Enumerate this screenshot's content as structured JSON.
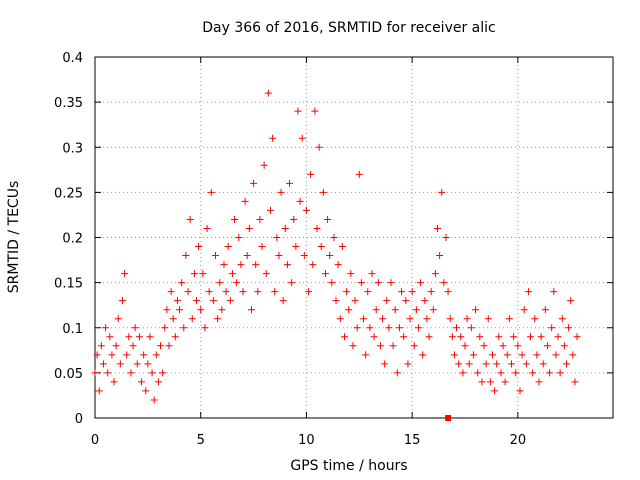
{
  "chart_data": {
    "type": "scatter",
    "title": "Day 366 of 2016, SRMTID for receiver alic",
    "xlabel": "GPS time / hours",
    "ylabel": "SRMTID / TECUs",
    "xlim": [
      0,
      24.5
    ],
    "ylim": [
      0,
      0.4
    ],
    "xticks": [
      0,
      5,
      10,
      15,
      20
    ],
    "xtick_labels": [
      "0",
      "5",
      "10",
      "15",
      "20"
    ],
    "yticks": [
      0,
      0.05,
      0.1,
      0.15,
      0.2,
      0.25,
      0.3,
      0.35,
      0.4
    ],
    "ytick_labels": [
      "0",
      "0.05",
      "0.1",
      "0.15",
      "0.2",
      "0.25",
      "0.3",
      "0.35",
      "0.4"
    ],
    "grid": true,
    "marker": "+",
    "color": "#ff0000",
    "series": [
      {
        "name": "SRMTID",
        "points": [
          [
            0.0,
            0.05
          ],
          [
            0.1,
            0.07
          ],
          [
            0.2,
            0.03
          ],
          [
            0.3,
            0.08
          ],
          [
            0.4,
            0.06
          ],
          [
            0.5,
            0.1
          ],
          [
            0.6,
            0.05
          ],
          [
            0.7,
            0.09
          ],
          [
            0.8,
            0.07
          ],
          [
            0.9,
            0.04
          ],
          [
            1.0,
            0.08
          ],
          [
            1.1,
            0.11
          ],
          [
            1.2,
            0.06
          ],
          [
            1.3,
            0.13
          ],
          [
            1.4,
            0.16
          ],
          [
            1.5,
            0.07
          ],
          [
            1.6,
            0.09
          ],
          [
            1.7,
            0.05
          ],
          [
            1.8,
            0.08
          ],
          [
            1.9,
            0.1
          ],
          [
            2.0,
            0.06
          ],
          [
            2.1,
            0.09
          ],
          [
            2.2,
            0.04
          ],
          [
            2.3,
            0.07
          ],
          [
            2.4,
            0.03
          ],
          [
            2.5,
            0.06
          ],
          [
            2.6,
            0.09
          ],
          [
            2.7,
            0.05
          ],
          [
            2.8,
            0.02
          ],
          [
            2.9,
            0.07
          ],
          [
            3.0,
            0.04
          ],
          [
            3.1,
            0.08
          ],
          [
            3.2,
            0.05
          ],
          [
            3.3,
            0.1
          ],
          [
            3.4,
            0.12
          ],
          [
            3.5,
            0.08
          ],
          [
            3.6,
            0.14
          ],
          [
            3.7,
            0.11
          ],
          [
            3.8,
            0.09
          ],
          [
            3.9,
            0.13
          ],
          [
            4.0,
            0.12
          ],
          [
            4.1,
            0.15
          ],
          [
            4.2,
            0.1
          ],
          [
            4.3,
            0.18
          ],
          [
            4.4,
            0.14
          ],
          [
            4.5,
            0.22
          ],
          [
            4.6,
            0.11
          ],
          [
            4.7,
            0.16
          ],
          [
            4.8,
            0.13
          ],
          [
            4.9,
            0.19
          ],
          [
            5.0,
            0.12
          ],
          [
            5.1,
            0.16
          ],
          [
            5.2,
            0.1
          ],
          [
            5.3,
            0.21
          ],
          [
            5.4,
            0.14
          ],
          [
            5.5,
            0.25
          ],
          [
            5.6,
            0.13
          ],
          [
            5.7,
            0.18
          ],
          [
            5.8,
            0.11
          ],
          [
            5.9,
            0.15
          ],
          [
            6.0,
            0.12
          ],
          [
            6.1,
            0.17
          ],
          [
            6.2,
            0.14
          ],
          [
            6.3,
            0.19
          ],
          [
            6.4,
            0.13
          ],
          [
            6.5,
            0.16
          ],
          [
            6.6,
            0.22
          ],
          [
            6.7,
            0.15
          ],
          [
            6.8,
            0.2
          ],
          [
            6.9,
            0.17
          ],
          [
            7.0,
            0.14
          ],
          [
            7.1,
            0.24
          ],
          [
            7.2,
            0.18
          ],
          [
            7.3,
            0.21
          ],
          [
            7.4,
            0.12
          ],
          [
            7.5,
            0.26
          ],
          [
            7.6,
            0.17
          ],
          [
            7.7,
            0.14
          ],
          [
            7.8,
            0.22
          ],
          [
            7.9,
            0.19
          ],
          [
            8.0,
            0.28
          ],
          [
            8.1,
            0.16
          ],
          [
            8.2,
            0.36
          ],
          [
            8.3,
            0.23
          ],
          [
            8.4,
            0.31
          ],
          [
            8.5,
            0.14
          ],
          [
            8.6,
            0.2
          ],
          [
            8.7,
            0.18
          ],
          [
            8.8,
            0.25
          ],
          [
            8.9,
            0.13
          ],
          [
            9.0,
            0.21
          ],
          [
            9.1,
            0.17
          ],
          [
            9.2,
            0.26
          ],
          [
            9.3,
            0.15
          ],
          [
            9.4,
            0.22
          ],
          [
            9.5,
            0.19
          ],
          [
            9.6,
            0.34
          ],
          [
            9.7,
            0.24
          ],
          [
            9.8,
            0.31
          ],
          [
            9.9,
            0.18
          ],
          [
            10.0,
            0.23
          ],
          [
            10.1,
            0.14
          ],
          [
            10.2,
            0.27
          ],
          [
            10.3,
            0.17
          ],
          [
            10.4,
            0.34
          ],
          [
            10.5,
            0.21
          ],
          [
            10.6,
            0.3
          ],
          [
            10.7,
            0.19
          ],
          [
            10.8,
            0.25
          ],
          [
            10.9,
            0.16
          ],
          [
            11.0,
            0.22
          ],
          [
            11.1,
            0.18
          ],
          [
            11.2,
            0.15
          ],
          [
            11.3,
            0.2
          ],
          [
            11.4,
            0.13
          ],
          [
            11.5,
            0.17
          ],
          [
            11.6,
            0.11
          ],
          [
            11.7,
            0.19
          ],
          [
            11.8,
            0.09
          ],
          [
            11.9,
            0.14
          ],
          [
            12.0,
            0.12
          ],
          [
            12.1,
            0.16
          ],
          [
            12.2,
            0.08
          ],
          [
            12.3,
            0.13
          ],
          [
            12.4,
            0.1
          ],
          [
            12.5,
            0.27
          ],
          [
            12.6,
            0.15
          ],
          [
            12.7,
            0.11
          ],
          [
            12.8,
            0.07
          ],
          [
            12.9,
            0.14
          ],
          [
            13.0,
            0.1
          ],
          [
            13.1,
            0.16
          ],
          [
            13.2,
            0.09
          ],
          [
            13.3,
            0.12
          ],
          [
            13.4,
            0.15
          ],
          [
            13.5,
            0.08
          ],
          [
            13.6,
            0.11
          ],
          [
            13.7,
            0.06
          ],
          [
            13.8,
            0.13
          ],
          [
            13.9,
            0.1
          ],
          [
            14.0,
            0.15
          ],
          [
            14.1,
            0.08
          ],
          [
            14.2,
            0.12
          ],
          [
            14.3,
            0.05
          ],
          [
            14.4,
            0.1
          ],
          [
            14.5,
            0.14
          ],
          [
            14.6,
            0.09
          ],
          [
            14.7,
            0.13
          ],
          [
            14.8,
            0.06
          ],
          [
            14.9,
            0.11
          ],
          [
            15.0,
            0.14
          ],
          [
            15.1,
            0.08
          ],
          [
            15.2,
            0.12
          ],
          [
            15.3,
            0.1
          ],
          [
            15.4,
            0.15
          ],
          [
            15.5,
            0.07
          ],
          [
            15.6,
            0.13
          ],
          [
            15.7,
            0.11
          ],
          [
            15.8,
            0.09
          ],
          [
            15.9,
            0.14
          ],
          [
            16.0,
            0.12
          ],
          [
            16.1,
            0.16
          ],
          [
            16.2,
            0.21
          ],
          [
            16.3,
            0.18
          ],
          [
            16.4,
            0.25
          ],
          [
            16.5,
            0.15
          ],
          [
            16.6,
            0.2
          ],
          [
            16.7,
            0.14
          ],
          [
            16.8,
            0.11
          ],
          [
            16.9,
            0.09
          ],
          [
            17.0,
            0.07
          ],
          [
            17.1,
            0.1
          ],
          [
            17.2,
            0.06
          ],
          [
            17.3,
            0.09
          ],
          [
            17.4,
            0.05
          ],
          [
            17.5,
            0.08
          ],
          [
            17.6,
            0.11
          ],
          [
            17.7,
            0.06
          ],
          [
            17.8,
            0.1
          ],
          [
            17.9,
            0.07
          ],
          [
            18.0,
            0.12
          ],
          [
            18.1,
            0.05
          ],
          [
            18.2,
            0.09
          ],
          [
            18.3,
            0.04
          ],
          [
            18.4,
            0.08
          ],
          [
            18.5,
            0.06
          ],
          [
            18.6,
            0.11
          ],
          [
            18.7,
            0.04
          ],
          [
            18.8,
            0.07
          ],
          [
            18.9,
            0.03
          ],
          [
            19.0,
            0.06
          ],
          [
            19.1,
            0.09
          ],
          [
            19.2,
            0.05
          ],
          [
            19.3,
            0.08
          ],
          [
            19.4,
            0.04
          ],
          [
            19.5,
            0.07
          ],
          [
            19.6,
            0.11
          ],
          [
            19.7,
            0.06
          ],
          [
            19.8,
            0.09
          ],
          [
            19.9,
            0.05
          ],
          [
            20.0,
            0.08
          ],
          [
            20.1,
            0.03
          ],
          [
            20.2,
            0.07
          ],
          [
            20.3,
            0.12
          ],
          [
            20.4,
            0.06
          ],
          [
            20.5,
            0.14
          ],
          [
            20.6,
            0.09
          ],
          [
            20.7,
            0.05
          ],
          [
            20.8,
            0.11
          ],
          [
            20.9,
            0.07
          ],
          [
            21.0,
            0.04
          ],
          [
            21.1,
            0.09
          ],
          [
            21.2,
            0.06
          ],
          [
            21.3,
            0.12
          ],
          [
            21.4,
            0.08
          ],
          [
            21.5,
            0.05
          ],
          [
            21.6,
            0.1
          ],
          [
            21.7,
            0.14
          ],
          [
            21.8,
            0.07
          ],
          [
            21.9,
            0.09
          ],
          [
            22.0,
            0.05
          ],
          [
            22.1,
            0.11
          ],
          [
            22.2,
            0.08
          ],
          [
            22.3,
            0.06
          ],
          [
            22.4,
            0.1
          ],
          [
            22.5,
            0.13
          ],
          [
            22.6,
            0.07
          ],
          [
            22.7,
            0.04
          ],
          [
            22.8,
            0.09
          ]
        ]
      }
    ],
    "markers": [
      {
        "x": 16.7,
        "y": 0.0,
        "shape": "square"
      }
    ]
  }
}
